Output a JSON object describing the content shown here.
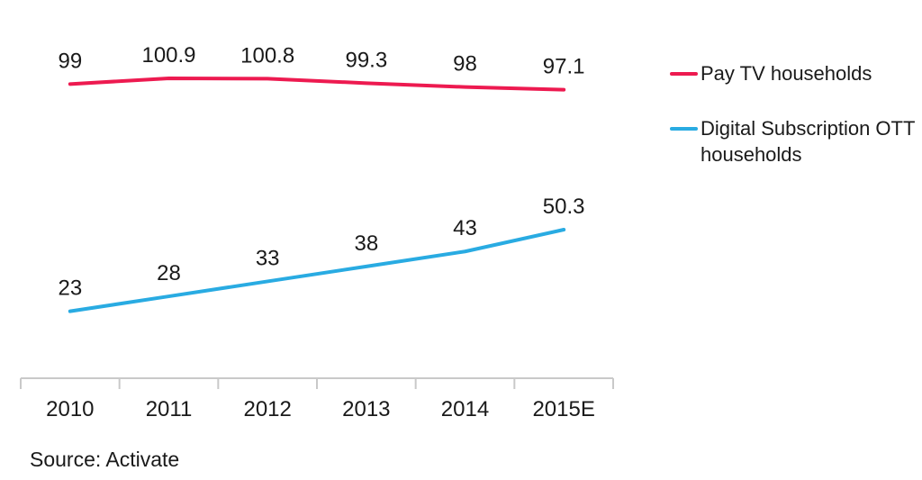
{
  "chart_data": {
    "type": "line",
    "categories": [
      "2010",
      "2011",
      "2012",
      "2013",
      "2014",
      "2015E"
    ],
    "series": [
      {
        "name": "Pay TV households",
        "color": "#ED1A50",
        "values": [
          99,
          100.9,
          100.8,
          99.3,
          98,
          97.1
        ]
      },
      {
        "name": "Digital Subscription OTT households",
        "color": "#29ABE2",
        "values": [
          23,
          28,
          33,
          38,
          43,
          50.3
        ]
      }
    ],
    "title": "",
    "xlabel": "",
    "ylabel": "",
    "ylim": [
      0,
      110
    ],
    "grid": false,
    "data_labels": true,
    "legend_position": "right"
  },
  "legend": {
    "items": [
      {
        "label": "Pay TV households",
        "color": "#ED1A50"
      },
      {
        "label": "Digital Subscription OTT\nhouseholds",
        "color": "#29ABE2"
      }
    ]
  },
  "source": "Source: Activate"
}
